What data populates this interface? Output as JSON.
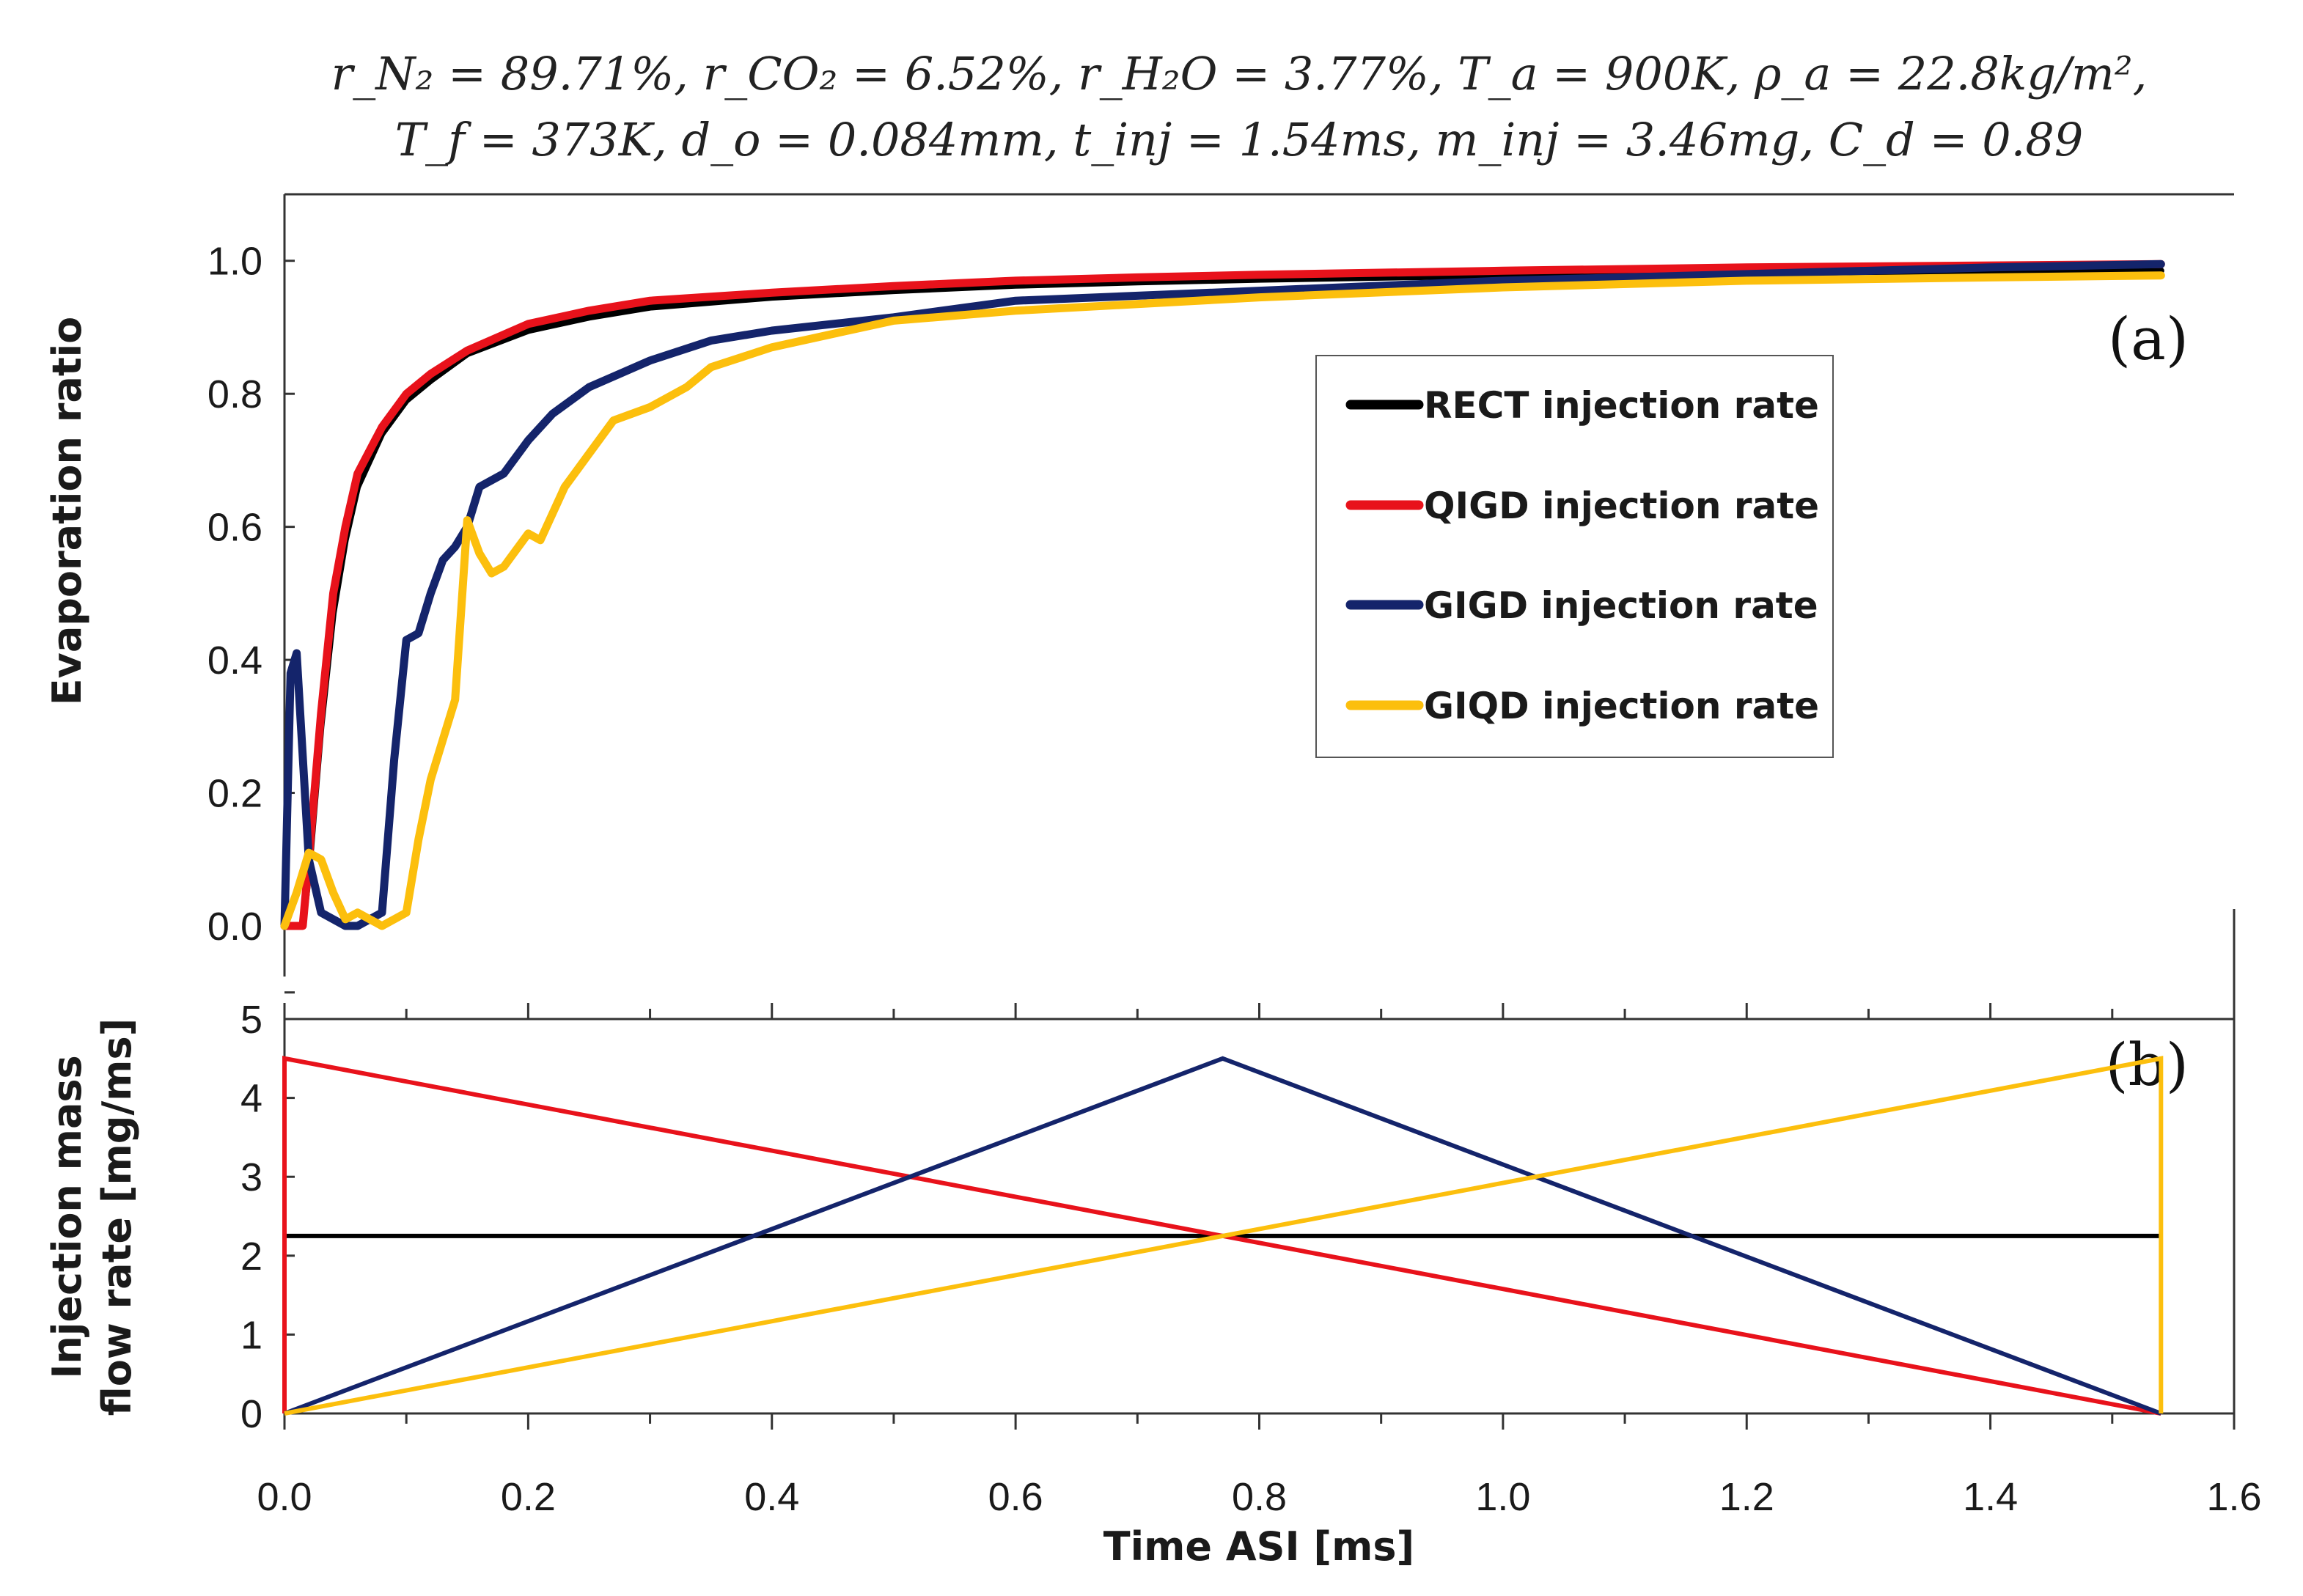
{
  "chart_data": [
    {
      "type": "line",
      "panel_label": "(a)",
      "title_lines": [
        "r_N₂ = 89.71%, r_CO₂ = 6.52%, r_H₂O = 3.77%, T_a = 900K, ρ_a = 22.8kg/m²,",
        "T_f = 373K, d_o = 0.084mm, t_inj = 1.54ms, m_inj = 3.46mg, C_d = 0.89"
      ],
      "ylabel": "Evaporation ratio",
      "xlim": [
        0,
        1.6
      ],
      "ylim": [
        -0.14,
        1.1
      ],
      "yticks": [
        0.0,
        0.2,
        0.4,
        0.6,
        0.8,
        1.0
      ],
      "ytick_labels": [
        "0.0",
        "0.2",
        "0.4",
        "0.6",
        "0.8",
        "1.0"
      ],
      "legend_position": "center-right",
      "series": [
        {
          "name": "RECT injection rate",
          "color": "#000000",
          "x": [
            0.0,
            0.015,
            0.02,
            0.03,
            0.04,
            0.05,
            0.06,
            0.08,
            0.1,
            0.12,
            0.15,
            0.2,
            0.25,
            0.3,
            0.4,
            0.5,
            0.6,
            0.7,
            0.8,
            1.0,
            1.2,
            1.4,
            1.54
          ],
          "y": [
            0.0,
            0.0,
            0.08,
            0.3,
            0.47,
            0.58,
            0.66,
            0.74,
            0.79,
            0.82,
            0.86,
            0.895,
            0.915,
            0.93,
            0.945,
            0.955,
            0.963,
            0.968,
            0.972,
            0.978,
            0.982,
            0.985,
            0.985
          ]
        },
        {
          "name": "QIGD injection rate",
          "color": "#e8121b",
          "x": [
            0.0,
            0.015,
            0.02,
            0.03,
            0.04,
            0.05,
            0.06,
            0.08,
            0.1,
            0.12,
            0.15,
            0.2,
            0.25,
            0.3,
            0.4,
            0.5,
            0.6,
            0.7,
            0.8,
            1.0,
            1.2,
            1.4,
            1.54
          ],
          "y": [
            0.0,
            0.0,
            0.1,
            0.32,
            0.5,
            0.6,
            0.68,
            0.75,
            0.8,
            0.83,
            0.865,
            0.905,
            0.925,
            0.94,
            0.952,
            0.962,
            0.97,
            0.975,
            0.979,
            0.985,
            0.99,
            0.993,
            0.995
          ]
        },
        {
          "name": "GIGD injection rate",
          "color": "#14246b",
          "x": [
            0.0,
            0.005,
            0.01,
            0.02,
            0.03,
            0.04,
            0.05,
            0.06,
            0.07,
            0.08,
            0.09,
            0.1,
            0.11,
            0.12,
            0.13,
            0.14,
            0.15,
            0.16,
            0.18,
            0.2,
            0.22,
            0.25,
            0.3,
            0.35,
            0.4,
            0.5,
            0.6,
            0.8,
            1.0,
            1.2,
            1.4,
            1.54
          ],
          "y": [
            0.0,
            0.38,
            0.41,
            0.1,
            0.02,
            0.01,
            0.0,
            0.0,
            0.01,
            0.02,
            0.25,
            0.43,
            0.44,
            0.5,
            0.55,
            0.57,
            0.6,
            0.66,
            0.68,
            0.73,
            0.77,
            0.81,
            0.85,
            0.88,
            0.895,
            0.915,
            0.94,
            0.955,
            0.97,
            0.98,
            0.99,
            0.995
          ]
        },
        {
          "name": "GIQD injection rate",
          "color": "#fcbf0d",
          "x": [
            0.0,
            0.01,
            0.02,
            0.03,
            0.04,
            0.05,
            0.06,
            0.07,
            0.08,
            0.09,
            0.1,
            0.11,
            0.12,
            0.13,
            0.14,
            0.15,
            0.16,
            0.17,
            0.18,
            0.2,
            0.21,
            0.22,
            0.23,
            0.25,
            0.27,
            0.3,
            0.33,
            0.35,
            0.4,
            0.45,
            0.5,
            0.6,
            0.8,
            1.0,
            1.2,
            1.4,
            1.54
          ],
          "y": [
            0.0,
            0.05,
            0.11,
            0.1,
            0.05,
            0.01,
            0.02,
            0.01,
            0.0,
            0.01,
            0.02,
            0.13,
            0.22,
            0.28,
            0.34,
            0.61,
            0.56,
            0.53,
            0.54,
            0.59,
            0.58,
            0.62,
            0.66,
            0.71,
            0.76,
            0.78,
            0.81,
            0.84,
            0.87,
            0.89,
            0.91,
            0.925,
            0.945,
            0.96,
            0.97,
            0.975,
            0.978
          ]
        }
      ]
    },
    {
      "type": "line",
      "panel_label": "(b)",
      "xlabel": "Time ASI [ms]",
      "ylabel_lines": [
        "Injection mass",
        "flow rate [mg/ms]"
      ],
      "xlim": [
        0,
        1.6
      ],
      "ylim": [
        0,
        5
      ],
      "xticks": [
        0.0,
        0.2,
        0.4,
        0.6,
        0.8,
        1.0,
        1.2,
        1.4,
        1.6
      ],
      "xtick_labels": [
        "0.0",
        "0.2",
        "0.4",
        "0.6",
        "0.8",
        "1.0",
        "1.2",
        "1.4",
        "1.6"
      ],
      "yticks": [
        0,
        1,
        2,
        3,
        4,
        5
      ],
      "ytick_labels": [
        "0",
        "1",
        "2",
        "3",
        "4",
        "5"
      ],
      "series": [
        {
          "name": "RECT injection rate",
          "color": "#000000",
          "x": [
            0.0,
            1.54
          ],
          "y": [
            2.25,
            2.25
          ]
        },
        {
          "name": "QIGD injection rate",
          "color": "#e8121b",
          "x": [
            0.0,
            0.0,
            1.54
          ],
          "y": [
            0.0,
            4.5,
            0.0
          ]
        },
        {
          "name": "GIGD injection rate",
          "color": "#14246b",
          "x": [
            0.0,
            0.77,
            1.54
          ],
          "y": [
            0.0,
            4.5,
            0.0
          ]
        },
        {
          "name": "GIQD injection rate",
          "color": "#fcbf0d",
          "x": [
            0.0,
            1.54,
            1.54
          ],
          "y": [
            0.0,
            4.5,
            0.0
          ]
        }
      ]
    }
  ]
}
